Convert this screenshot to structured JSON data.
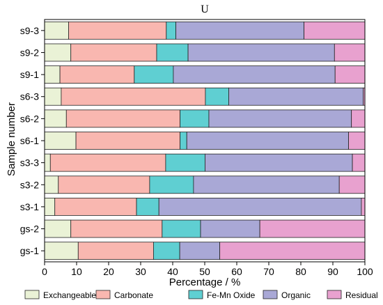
{
  "chart_data": {
    "type": "bar",
    "orientation": "horizontal",
    "stacked": true,
    "title": "U",
    "xlabel": "Percentage / %",
    "ylabel": "Sample number",
    "xlim": [
      0,
      100
    ],
    "xticks": [
      "0",
      "10",
      "20",
      "30",
      "40",
      "50",
      "60",
      "70",
      "80",
      "90",
      "100"
    ],
    "legend_position": "bottom",
    "categories": [
      "s9-3",
      "s9-2",
      "s9-1",
      "s6-3",
      "s6-2",
      "s6-1",
      "s3-3",
      "s3-2",
      "s3-1",
      "gs-2",
      "gs-1"
    ],
    "series": [
      {
        "name": "Exchangeable",
        "color": "#eaf2d6",
        "values": [
          7.5,
          8.2,
          4.8,
          5.2,
          6.8,
          9.8,
          1.8,
          4.3,
          3.2,
          8.2,
          10.5
        ]
      },
      {
        "name": "Carbonate",
        "color": "#f9b7b0",
        "values": [
          30.5,
          26.8,
          23.2,
          45.0,
          35.5,
          32.5,
          36.0,
          28.5,
          25.5,
          28.5,
          23.5
        ]
      },
      {
        "name": "Fe-Mn Oxide",
        "color": "#5fcfd2",
        "values": [
          3.0,
          9.8,
          12.2,
          7.3,
          9.0,
          2.1,
          12.3,
          13.7,
          7.0,
          12.0,
          8.2
        ]
      },
      {
        "name": "Organic",
        "color": "#a9a8d6",
        "values": [
          40.0,
          45.7,
          50.5,
          42.0,
          44.5,
          50.5,
          46.0,
          45.5,
          63.2,
          18.5,
          12.5
        ]
      },
      {
        "name": "Residual",
        "color": "#e8a1cf",
        "values": [
          19.0,
          9.5,
          9.3,
          0.5,
          4.2,
          5.1,
          3.9,
          8.0,
          1.1,
          32.8,
          45.3
        ]
      }
    ]
  }
}
